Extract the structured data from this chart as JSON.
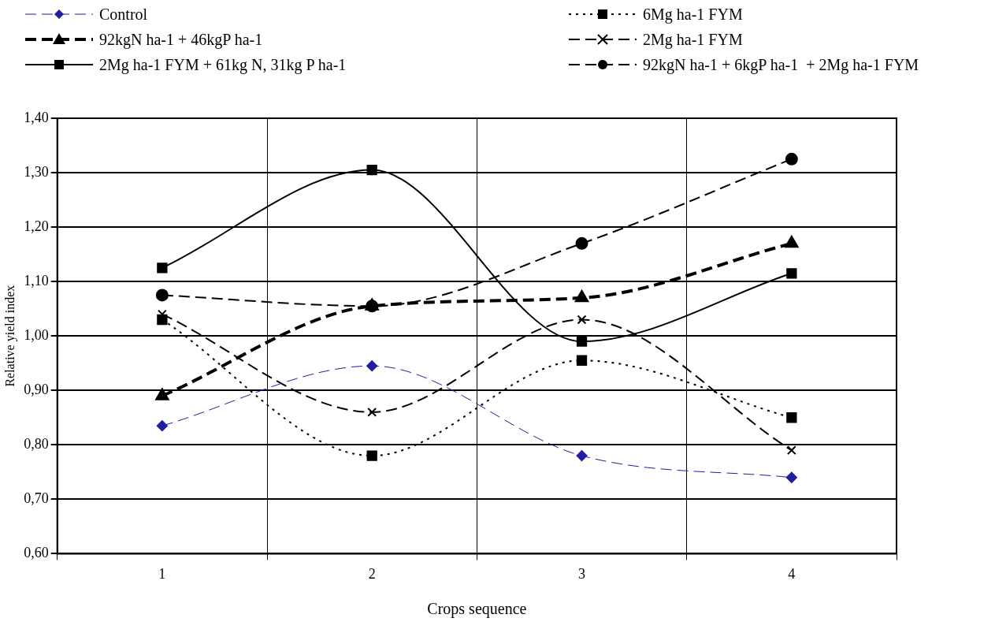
{
  "chart_data": {
    "type": "line",
    "xlabel": "Crops sequence",
    "ylabel": "Relative yield index",
    "categories": [
      "1",
      "2",
      "3",
      "4"
    ],
    "ylim": [
      0.6,
      1.4
    ],
    "yticks": [
      {
        "value": 0.6,
        "label": "0,60"
      },
      {
        "value": 0.7,
        "label": "0,70"
      },
      {
        "value": 0.8,
        "label": "0,80"
      },
      {
        "value": 0.9,
        "label": "0,90"
      },
      {
        "value": 1.0,
        "label": "1,00"
      },
      {
        "value": 1.1,
        "label": "1,10"
      },
      {
        "value": 1.2,
        "label": "1,20"
      },
      {
        "value": 1.3,
        "label": "1,30"
      },
      {
        "value": 1.4,
        "label": "1,40"
      }
    ],
    "grid": true,
    "legend": "top",
    "series": [
      {
        "name": "Control",
        "color": "#1f1f9f",
        "marker": "diamond",
        "line_style": "dashed",
        "values": [
          0.835,
          0.945,
          0.78,
          0.74
        ]
      },
      {
        "name": "92kgN ha-1 + 46kgP ha-1",
        "color": "#000000",
        "marker": "triangle",
        "line_style": "dashed",
        "values": [
          0.89,
          1.055,
          1.07,
          1.17
        ]
      },
      {
        "name": "2Mg ha-1 FYM + 61kg N, 31kg P ha-1",
        "color": "#000000",
        "marker": "square",
        "line_style": "solid",
        "values": [
          1.125,
          1.305,
          0.99,
          1.115
        ]
      },
      {
        "name": "6Mg ha-1 FYM",
        "color": "#000000",
        "marker": "square",
        "line_style": "dotted",
        "values": [
          1.03,
          0.78,
          0.955,
          0.85
        ]
      },
      {
        "name": "2Mg ha-1 FYM",
        "color": "#000000",
        "marker": "cross",
        "line_style": "dashed",
        "values": [
          1.04,
          0.86,
          1.03,
          0.79
        ]
      },
      {
        "name": "92kgN ha-1 + 6kgP ha-1  + 2Mg ha-1 FYM",
        "color": "#000000",
        "marker": "circle",
        "line_style": "dashed",
        "values": [
          1.075,
          1.055,
          1.17,
          1.325
        ]
      }
    ]
  }
}
